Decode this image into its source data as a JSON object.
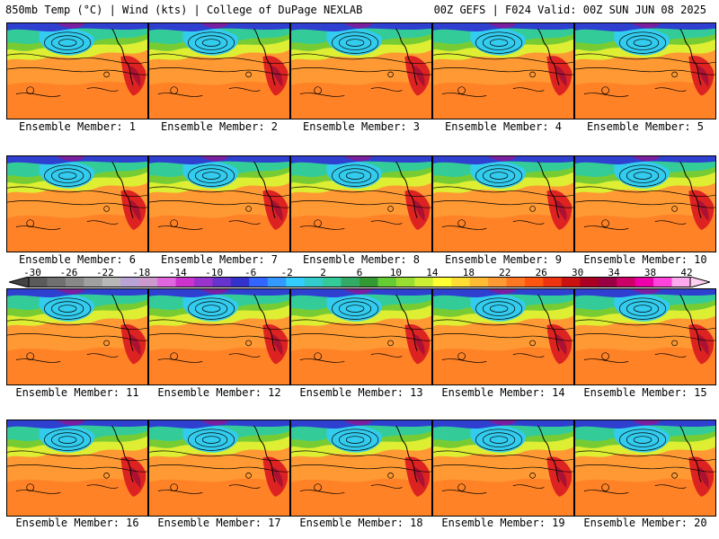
{
  "header": {
    "left": "850mb Temp (°C) | Wind (kts) | College of DuPage NEXLAB",
    "right": "00Z GEFS | F024 Valid: 00Z SUN JUN 08 2025"
  },
  "members": [
    {
      "caption": "Ensemble Member: 1"
    },
    {
      "caption": "Ensemble Member: 2"
    },
    {
      "caption": "Ensemble Member: 3"
    },
    {
      "caption": "Ensemble Member: 4"
    },
    {
      "caption": "Ensemble Member: 5"
    },
    {
      "caption": "Ensemble Member: 6"
    },
    {
      "caption": "Ensemble Member: 7"
    },
    {
      "caption": "Ensemble Member: 8"
    },
    {
      "caption": "Ensemble Member: 9"
    },
    {
      "caption": "Ensemble Member: 10"
    },
    {
      "caption": "Ensemble Member: 11"
    },
    {
      "caption": "Ensemble Member: 12"
    },
    {
      "caption": "Ensemble Member: 13"
    },
    {
      "caption": "Ensemble Member: 14"
    },
    {
      "caption": "Ensemble Member: 15"
    },
    {
      "caption": "Ensemble Member: 16"
    },
    {
      "caption": "Ensemble Member: 17"
    },
    {
      "caption": "Ensemble Member: 18"
    },
    {
      "caption": "Ensemble Member: 19"
    },
    {
      "caption": "Ensemble Member: 20"
    }
  ],
  "colorbar": {
    "labels": [
      "-30",
      "-26",
      "-22",
      "-18",
      "-14",
      "-10",
      "-6",
      "-2",
      "2",
      "6",
      "10",
      "14",
      "18",
      "22",
      "26",
      "30",
      "34",
      "38",
      "42"
    ],
    "colors": [
      "#5a5a5a",
      "#707070",
      "#888888",
      "#a0a0a0",
      "#b8b8b8",
      "#b9a3d6",
      "#cc99cc",
      "#e066e0",
      "#cc33cc",
      "#9933cc",
      "#6633cc",
      "#3333cc",
      "#3366ff",
      "#3399ff",
      "#33ccff",
      "#33cccc",
      "#33cc99",
      "#33aa66",
      "#339933",
      "#66cc33",
      "#99dd33",
      "#ccee33",
      "#ffff33",
      "#ffdd33",
      "#ffbb33",
      "#ff9933",
      "#ff7722",
      "#ff5511",
      "#ee3311",
      "#cc1111",
      "#aa0022",
      "#990044",
      "#cc0066",
      "#ee00aa",
      "#ff44dd",
      "#ffaaee"
    ]
  },
  "map_colors": {
    "cold": "#2f3fd0",
    "cyan": "#33ccee",
    "teal": "#33cc99",
    "green": "#77cc33",
    "yellow": "#ddee33",
    "orange": "#ff9933",
    "deep_orange": "#ff7722",
    "red": "#dd2222",
    "darkred": "#aa1133",
    "purple": "#7a1fa0"
  }
}
